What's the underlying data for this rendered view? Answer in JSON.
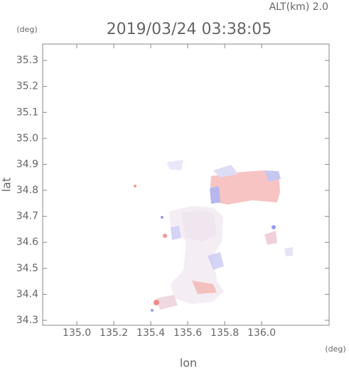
{
  "chart_data": {
    "type": "map",
    "title": "2019/03/24 03:38:05",
    "subtitle": "ALT(km) 2.0",
    "x_label": "lon",
    "y_label": "lat",
    "x_unit": "(deg)",
    "y_unit": "(deg)",
    "xlim": [
      134.815,
      136.365
    ],
    "ylim": [
      34.281,
      35.363
    ],
    "xticks": [
      {
        "value": 135.0,
        "label": "135.0"
      },
      135.2,
      135.4,
      135.6,
      135.8,
      {
        "value": 136.0,
        "label": "136.0"
      }
    ],
    "yticks": [
      34.3,
      34.4,
      34.5,
      34.6,
      34.7,
      34.8,
      34.9,
      {
        "value": 35.0,
        "label": "35.0"
      },
      35.1,
      35.2,
      35.3
    ]
  }
}
